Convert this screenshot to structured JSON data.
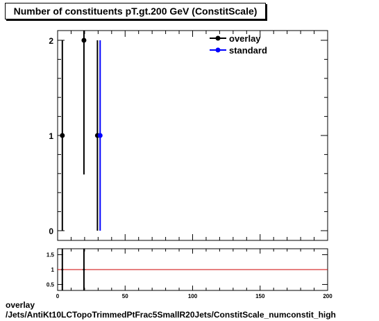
{
  "title": "Number of constituents pT.gt.200 GeV (ConstitScale)",
  "footer": {
    "line1": "overlay",
    "line2": "/Jets/AntiKt10LCTopoTrimmedPtFrac5SmallR20Jets/ConstitScale_numconstit_high"
  },
  "colors": {
    "overlay": "#000000",
    "standard": "#0000ff",
    "ratio_line": "#cc0000"
  },
  "chart_data": [
    {
      "type": "scatter",
      "title": "Number of constituents pT.gt.200 GeV (ConstitScale)",
      "xlim": [
        0,
        200
      ],
      "ylim": [
        0,
        2.1
      ],
      "y_ticks": [
        0,
        1,
        2
      ],
      "grid": false,
      "legend_position": "top-right",
      "series": [
        {
          "name": "overlay",
          "color": "#000000",
          "points": [
            {
              "x": 3.5,
              "y": 1,
              "ylo": 0,
              "yhi": 2
            },
            {
              "x": 19.5,
              "y": 2,
              "ylo": 0.59,
              "yhi": 2.1
            },
            {
              "x": 29.5,
              "y": 1,
              "ylo": 0,
              "yhi": 2
            }
          ]
        },
        {
          "name": "standard",
          "color": "#0000ff",
          "points": [
            {
              "x": 31.5,
              "y": 1,
              "ylo": 0,
              "yhi": 2
            }
          ]
        }
      ]
    },
    {
      "type": "line",
      "xlim": [
        0,
        200
      ],
      "ylim": [
        0.3,
        1.7
      ],
      "y_ticks": [
        0.5,
        1,
        1.5
      ],
      "x_ticks": [
        0,
        50,
        100,
        150,
        200
      ],
      "reference_line": 1,
      "points": [
        {
          "x": 3.5,
          "y": 1,
          "ylo": 0.3,
          "yhi": 1.7
        },
        {
          "x": 19.5,
          "y": 1,
          "ylo": 0.3,
          "yhi": 1.7
        }
      ]
    }
  ]
}
